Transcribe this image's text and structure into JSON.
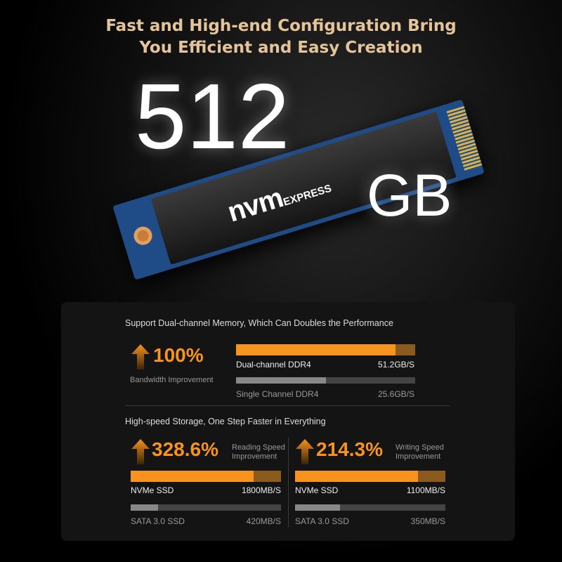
{
  "header": {
    "line1": "Fast and High-end Configuration Bring",
    "line2": "You Efficient and Easy Creation"
  },
  "hero": {
    "capacity": "512",
    "unit": "GB",
    "logo_main": "nvm",
    "logo_sub": "EXPRESS"
  },
  "colors": {
    "accent": "#f7931e",
    "accent_dark": "#8a5a1e",
    "title": "#e5c49a",
    "bar_gray": "#888888"
  },
  "memory": {
    "heading": "Support Dual-channel Memory, Which Can Doubles the Performance",
    "improvement": "100%",
    "improvement_label": "Bandwidth Improvement",
    "bars": [
      {
        "label": "Dual-channel DDR4",
        "value": "51.2GB/S",
        "fill": 0.89
      },
      {
        "label": "Single Channel DDR4",
        "value": "25.6GB/S",
        "fill": 0.5
      }
    ]
  },
  "storage": {
    "heading": "High-speed Storage, One Step Faster in Everything",
    "blocks": [
      {
        "improvement": "328.6%",
        "label1": "Reading Speed",
        "label2": "Improvement",
        "bars": [
          {
            "label": "NVMe SSD",
            "value": "1800MB/S",
            "fill": 0.82
          },
          {
            "label": "SATA 3.0 SSD",
            "value": "420MB/S",
            "fill": 0.18
          }
        ]
      },
      {
        "improvement": "214.3%",
        "label1": "Writing Speed",
        "label2": "Improvement",
        "bars": [
          {
            "label": "NVMe SSD",
            "value": "1100MB/S",
            "fill": 0.82
          },
          {
            "label": "SATA 3.0 SSD",
            "value": "350MB/S",
            "fill": 0.3
          }
        ]
      }
    ]
  }
}
